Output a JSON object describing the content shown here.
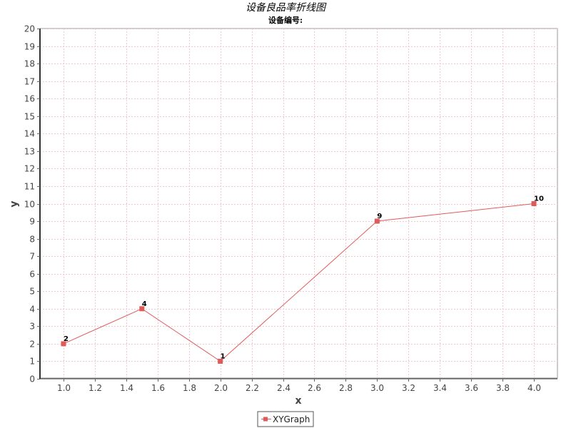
{
  "chart_data": {
    "type": "line",
    "title": "设备良品率折线图",
    "subtitle": "设备编号:",
    "xlabel": "x",
    "ylabel": "y",
    "xlim": [
      0.85,
      4.15
    ],
    "ylim": [
      0,
      20
    ],
    "x_ticks": [
      1.0,
      1.2,
      1.4,
      1.6,
      1.8,
      2.0,
      2.2,
      2.4,
      2.6,
      2.8,
      3.0,
      3.2,
      3.4,
      3.6,
      3.8,
      4.0
    ],
    "y_ticks": [
      0,
      1,
      2,
      3,
      4,
      5,
      6,
      7,
      8,
      9,
      10,
      11,
      12,
      13,
      14,
      15,
      16,
      17,
      18,
      19,
      20
    ],
    "grid": true,
    "legend_position": "bottom-center",
    "series": [
      {
        "name": "XYGraph",
        "color": "#e05a5a",
        "points": [
          {
            "x": 1.0,
            "y": 2,
            "label": "2"
          },
          {
            "x": 1.5,
            "y": 4,
            "label": "4"
          },
          {
            "x": 2.0,
            "y": 1,
            "label": "1"
          },
          {
            "x": 3.0,
            "y": 9,
            "label": "9"
          },
          {
            "x": 4.0,
            "y": 10,
            "label": "10"
          }
        ]
      }
    ]
  }
}
